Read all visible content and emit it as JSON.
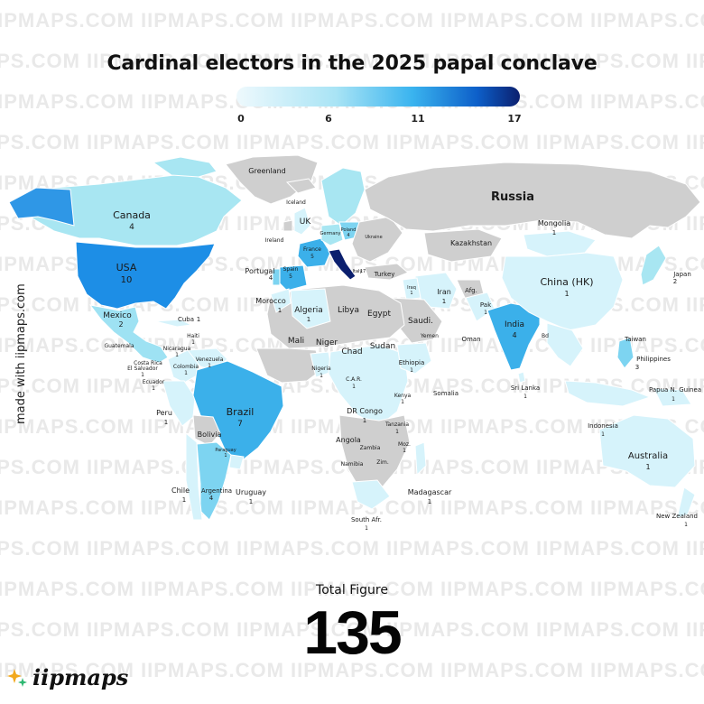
{
  "title": "Cardinal electors in the 2025 papal conclave",
  "legend": {
    "ticks": [
      "0",
      "6",
      "11",
      "17"
    ],
    "min": 0,
    "max": 17,
    "colors": [
      "#eef9fd",
      "#a9e4f5",
      "#3ab4ef",
      "#0d5fc9",
      "#0b1f6e"
    ]
  },
  "watermark_text": "IIPMAPS.COM",
  "side_credit": "made with iipmaps.com",
  "total": {
    "label": "Total Figure",
    "value": "135"
  },
  "brand": {
    "name": "iipmaps",
    "icon": "sparkle-icon"
  },
  "colors": {
    "no_data": "#d2d2d2",
    "no_data_dark": "#c4c4c4"
  },
  "countries": [
    {
      "name": "Greenland",
      "count": ""
    },
    {
      "name": "Canada",
      "count": "4"
    },
    {
      "name": "USA",
      "count": "10"
    },
    {
      "name": "Mexico",
      "count": "2"
    },
    {
      "name": "Cuba",
      "count": "1"
    },
    {
      "name": "Guatemala",
      "count": ""
    },
    {
      "name": "Nicaragua",
      "count": "1"
    },
    {
      "name": "El Salvador",
      "count": "1"
    },
    {
      "name": "Costa Rica",
      "count": ""
    },
    {
      "name": "Haiti",
      "count": "1"
    },
    {
      "name": "Venezuela",
      "count": "1"
    },
    {
      "name": "Colombia",
      "count": "1"
    },
    {
      "name": "Ecuador",
      "count": "1"
    },
    {
      "name": "Peru",
      "count": "1"
    },
    {
      "name": "Brazil",
      "count": "7"
    },
    {
      "name": "Bolivia",
      "count": ""
    },
    {
      "name": "Paraguay",
      "count": "1"
    },
    {
      "name": "Chile",
      "count": "1"
    },
    {
      "name": "Argentina",
      "count": "4"
    },
    {
      "name": "Uruguay",
      "count": "1"
    },
    {
      "name": "Iceland",
      "count": ""
    },
    {
      "name": "Ireland",
      "count": ""
    },
    {
      "name": "UK",
      "count": ""
    },
    {
      "name": "Portugal",
      "count": "4"
    },
    {
      "name": "Spain",
      "count": "5"
    },
    {
      "name": "France",
      "count": "5"
    },
    {
      "name": "Germany",
      "count": ""
    },
    {
      "name": "Poland",
      "count": "4"
    },
    {
      "name": "Italy",
      "count": "17"
    },
    {
      "name": "Morocco",
      "count": "1"
    },
    {
      "name": "Algeria",
      "count": "1"
    },
    {
      "name": "Libya",
      "count": ""
    },
    {
      "name": "Egypt",
      "count": ""
    },
    {
      "name": "Mali",
      "count": ""
    },
    {
      "name": "Niger",
      "count": ""
    },
    {
      "name": "Chad",
      "count": ""
    },
    {
      "name": "Sudan",
      "count": ""
    },
    {
      "name": "Nigeria",
      "count": "1"
    },
    {
      "name": "C.A.R.",
      "count": "1"
    },
    {
      "name": "Ethiopia",
      "count": "1"
    },
    {
      "name": "Somalia",
      "count": ""
    },
    {
      "name": "Kenya",
      "count": "1"
    },
    {
      "name": "DR Congo",
      "count": "1"
    },
    {
      "name": "Tanzania",
      "count": "1"
    },
    {
      "name": "Angola",
      "count": ""
    },
    {
      "name": "Zambia",
      "count": ""
    },
    {
      "name": "Namibia",
      "count": ""
    },
    {
      "name": "Moz.",
      "count": "1"
    },
    {
      "name": "Zim.",
      "count": ""
    },
    {
      "name": "Madagascar",
      "count": "1"
    },
    {
      "name": "South Afr.",
      "count": "1"
    },
    {
      "name": "Russia",
      "count": ""
    },
    {
      "name": "Ukraine",
      "count": ""
    },
    {
      "name": "Turkey",
      "count": ""
    },
    {
      "name": "Kazakhstan",
      "count": ""
    },
    {
      "name": "Iran",
      "count": "1"
    },
    {
      "name": "Iraq",
      "count": "1"
    },
    {
      "name": "Saudi.",
      "count": ""
    },
    {
      "name": "Yemen",
      "count": ""
    },
    {
      "name": "Oman",
      "count": ""
    },
    {
      "name": "Afg.",
      "count": ""
    },
    {
      "name": "Pak",
      "count": "1"
    },
    {
      "name": "India",
      "count": "4"
    },
    {
      "name": "Sri Lanka",
      "count": "1"
    },
    {
      "name": "Mongolia",
      "count": "1"
    },
    {
      "name": "China (HK)",
      "count": "1"
    },
    {
      "name": "Japan",
      "count": "2"
    },
    {
      "name": "Bd",
      "count": ""
    },
    {
      "name": "Taiwan",
      "count": ""
    },
    {
      "name": "Philippines",
      "count": "3"
    },
    {
      "name": "Indonesia",
      "count": "1"
    },
    {
      "name": "Papua N. Guinea",
      "count": "1"
    },
    {
      "name": "Australia",
      "count": "1"
    },
    {
      "name": "New Zealand",
      "count": "1"
    }
  ]
}
